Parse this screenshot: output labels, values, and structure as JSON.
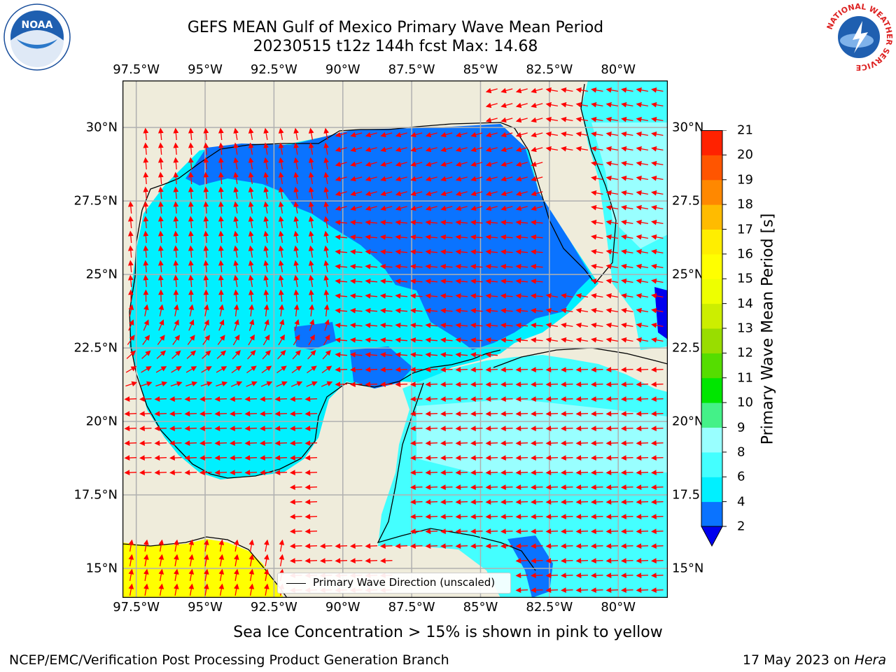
{
  "header": {
    "title_line1": "GEFS MEAN Gulf of Mexico Primary Wave Mean Period",
    "title_line2": "20230515 t12z 144h fcst   Max: 14.68"
  },
  "logos": {
    "left_text": "NOAA",
    "right_text": "NATIONAL WEATHER SERVICE"
  },
  "map": {
    "lon_labels": [
      "97.5°W",
      "95°W",
      "92.5°W",
      "90°W",
      "87.5°W",
      "85°W",
      "82.5°W",
      "80°W"
    ],
    "lon_values": [
      -97.5,
      -95,
      -92.5,
      -90,
      -87.5,
      -85,
      -82.5,
      -80
    ],
    "lat_labels_left": [
      "30°N",
      "27.5°N",
      "25°N",
      "22.5°N",
      "20°N",
      "17.5°N",
      "15°N"
    ],
    "lat_labels_right": [
      "30°N",
      "27.5",
      "25°N",
      "22.5",
      "20°N",
      "17.5",
      "15°N"
    ],
    "lat_values": [
      30,
      27.5,
      25,
      22.5,
      20,
      17.5,
      15
    ],
    "lon_range": [
      -98,
      -78.2
    ],
    "lat_range": [
      14,
      31.6
    ],
    "land_color": "#efecdb",
    "legend_label": "Primary Wave Direction (unscaled)",
    "arrow_color": "#ff0000"
  },
  "colorbar": {
    "label": "Primary Wave Mean Period [s]",
    "ticks": [
      "2",
      "4",
      "6",
      "8",
      "9",
      "10",
      "11",
      "12",
      "13",
      "14",
      "15",
      "16",
      "17",
      "18",
      "19",
      "20",
      "21"
    ],
    "colors": [
      "#0a73ff",
      "#00f0ff",
      "#44ffff",
      "#99ffff",
      "#44f188",
      "#00e600",
      "#55dd00",
      "#99dd00",
      "#ccee00",
      "#eeff00",
      "#ffff00",
      "#ffee00",
      "#ffbb00",
      "#ff8800",
      "#ff5500",
      "#ff2200"
    ],
    "under_color": "#0000ee"
  },
  "footer": {
    "sea_ice_note": "Sea Ice Concentration > 15% is shown in pink to yellow",
    "left": "NCEP/EMC/Verification Post Processing Product Generation Branch",
    "right_prefix": "17 May 2023 on ",
    "right_machine": "Hera"
  }
}
